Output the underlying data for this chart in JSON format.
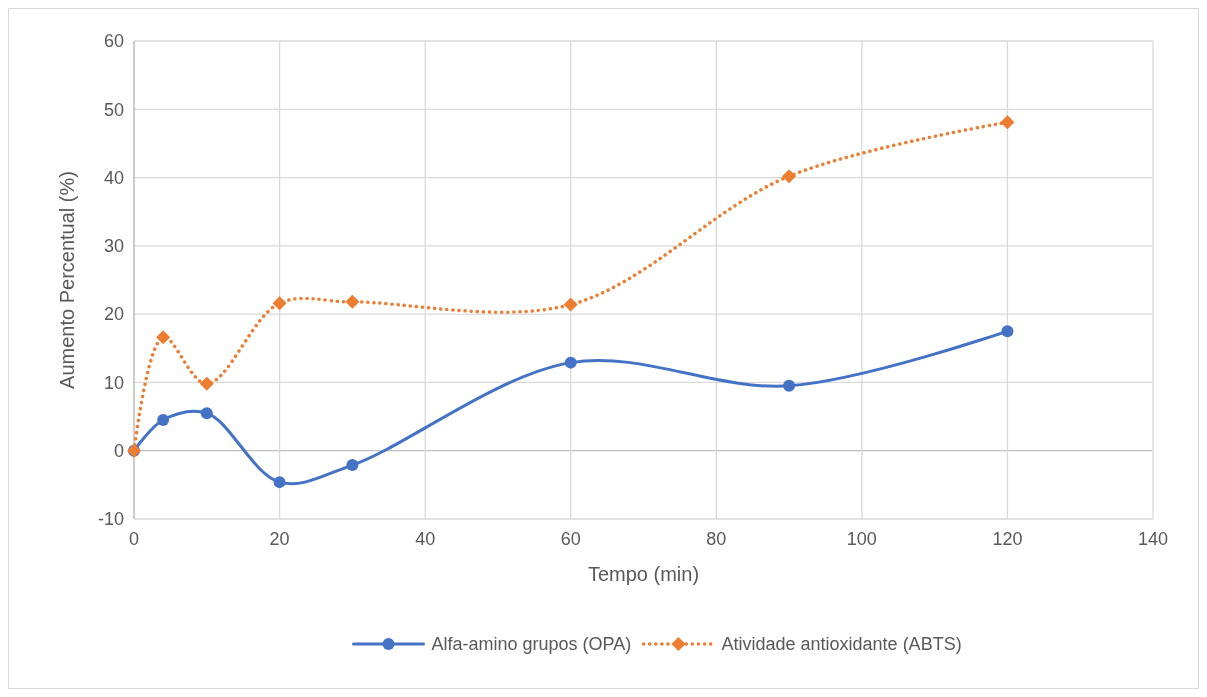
{
  "chart_data": {
    "type": "line",
    "xlabel": "Tempo (min)",
    "ylabel": "Aumento Percentual (%)",
    "xlim": [
      0,
      140
    ],
    "xticks": [
      0,
      20,
      40,
      60,
      80,
      100,
      120,
      140
    ],
    "ylim": [
      -10,
      60
    ],
    "yticks": [
      -10,
      0,
      10,
      20,
      30,
      40,
      50,
      60
    ],
    "grid": true,
    "legend": "bottom",
    "series": [
      {
        "name": "Alfa-amino grupos (OPA)",
        "color": "#4472c4",
        "marker": "circle",
        "line_style": "solid",
        "x": [
          0,
          4,
          10,
          20,
          30,
          60,
          90,
          120
        ],
        "values": [
          0,
          4.5,
          5.5,
          -4.6,
          -2.1,
          12.9,
          9.5,
          17.5
        ]
      },
      {
        "name": "Atividade antioxidante (ABTS)",
        "color": "#ed7d31",
        "marker": "diamond",
        "line_style": "dotted",
        "x": [
          0,
          4,
          10,
          20,
          30,
          60,
          90,
          120
        ],
        "values": [
          0,
          16.6,
          9.8,
          21.6,
          21.8,
          21.4,
          40.2,
          48.1
        ]
      }
    ]
  }
}
